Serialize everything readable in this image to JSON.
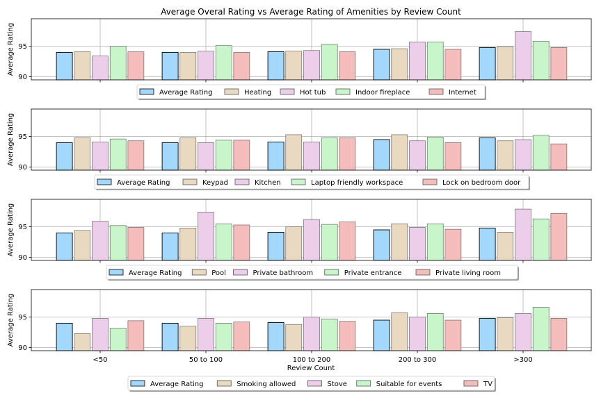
{
  "title": "Average Overal Rating vs Average Rating of Amenities by Review Count",
  "xlabel": "Review Count",
  "ylabel": "Average Rating",
  "colors": [
    "#a3d7fb",
    "#e9d9c1",
    "#eccdea",
    "#c8f5c9",
    "#f5bcbc"
  ],
  "chart_data": [
    {
      "type": "bar",
      "categories": [
        "<50",
        "50 to 100",
        "100 to 200",
        "200 to 300",
        ">300"
      ],
      "ylim": [
        89.5,
        99.5
      ],
      "yticks": [
        90,
        95
      ],
      "xlabel": "",
      "ylabel": "Average Rating",
      "legend_position": "bottom-center",
      "grid": true,
      "series": [
        {
          "name": "Average Rating",
          "values": [
            94.0,
            94.0,
            94.1,
            94.5,
            94.8
          ]
        },
        {
          "name": "Heating",
          "values": [
            94.1,
            94.0,
            94.2,
            94.6,
            94.9
          ]
        },
        {
          "name": "Hot tub",
          "values": [
            93.4,
            94.2,
            94.3,
            95.7,
            97.4
          ]
        },
        {
          "name": "Indoor fireplace",
          "values": [
            95.0,
            95.1,
            95.3,
            95.7,
            95.8
          ]
        },
        {
          "name": "Internet",
          "values": [
            94.1,
            94.0,
            94.1,
            94.5,
            94.8
          ]
        }
      ]
    },
    {
      "type": "bar",
      "categories": [
        "<50",
        "50 to 100",
        "100 to 200",
        "200 to 300",
        ">300"
      ],
      "ylim": [
        89.5,
        99.5
      ],
      "yticks": [
        90,
        95
      ],
      "xlabel": "",
      "ylabel": "Average Rating",
      "legend_position": "bottom-center",
      "grid": true,
      "series": [
        {
          "name": "Average Rating",
          "values": [
            94.0,
            94.0,
            94.1,
            94.5,
            94.8
          ]
        },
        {
          "name": "Keypad",
          "values": [
            94.8,
            94.8,
            95.3,
            95.3,
            94.3
          ]
        },
        {
          "name": "Kitchen",
          "values": [
            94.1,
            94.0,
            94.1,
            94.3,
            94.5
          ]
        },
        {
          "name": "Laptop friendly workspace",
          "values": [
            94.6,
            94.4,
            94.8,
            94.9,
            95.2
          ]
        },
        {
          "name": "Lock on bedroom door",
          "values": [
            94.3,
            94.4,
            94.8,
            94.0,
            93.8
          ]
        }
      ]
    },
    {
      "type": "bar",
      "categories": [
        "<50",
        "50 to 100",
        "100 to 200",
        "200 to 300",
        ">300"
      ],
      "ylim": [
        89.5,
        99.5
      ],
      "yticks": [
        90,
        95
      ],
      "xlabel": "",
      "ylabel": "Average Rating",
      "legend_position": "bottom-center",
      "grid": true,
      "series": [
        {
          "name": "Average Rating",
          "values": [
            94.0,
            94.0,
            94.1,
            94.5,
            94.8
          ]
        },
        {
          "name": "Pool",
          "values": [
            94.4,
            94.8,
            95.0,
            95.5,
            94.1
          ]
        },
        {
          "name": "Private bathroom",
          "values": [
            95.9,
            97.4,
            96.2,
            94.9,
            97.9
          ]
        },
        {
          "name": "Private entrance",
          "values": [
            95.2,
            95.5,
            95.4,
            95.5,
            96.3
          ]
        },
        {
          "name": "Private living room",
          "values": [
            94.9,
            95.3,
            95.8,
            94.6,
            97.2
          ]
        }
      ]
    },
    {
      "type": "bar",
      "categories": [
        "<50",
        "50 to 100",
        "100 to 200",
        "200 to 300",
        ">300"
      ],
      "ylim": [
        89.5,
        99.5
      ],
      "yticks": [
        90,
        95
      ],
      "xlabel": "Review Count",
      "ylabel": "Average Rating",
      "legend_position": "bottom-center",
      "grid": true,
      "series": [
        {
          "name": "Average Rating",
          "values": [
            94.0,
            94.0,
            94.1,
            94.5,
            94.8
          ]
        },
        {
          "name": "Smoking allowed",
          "values": [
            92.3,
            93.5,
            93.8,
            95.7,
            94.9
          ]
        },
        {
          "name": "Stove",
          "values": [
            94.8,
            94.8,
            95.0,
            95.0,
            95.6
          ]
        },
        {
          "name": "Suitable for events",
          "values": [
            93.2,
            94.0,
            94.7,
            95.6,
            96.6
          ]
        },
        {
          "name": "TV",
          "values": [
            94.4,
            94.2,
            94.3,
            94.5,
            94.8
          ]
        }
      ]
    }
  ]
}
